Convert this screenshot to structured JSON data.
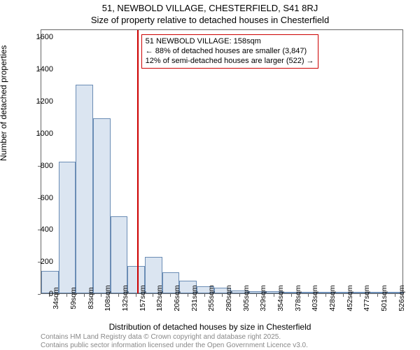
{
  "title_main": "51, NEWBOLD VILLAGE, CHESTERFIELD, S41 8RJ",
  "title_sub": "Size of property relative to detached houses in Chesterfield",
  "ylabel": "Number of detached properties",
  "xlabel": "Distribution of detached houses by size in Chesterfield",
  "attribution_line1": "Contains HM Land Registry data © Crown copyright and database right 2025.",
  "attribution_line2": "Contains public sector information licensed under the Open Government Licence v3.0.",
  "chart": {
    "type": "histogram",
    "background_color": "#ffffff",
    "axis_color": "#666666",
    "ylim": [
      0,
      1650
    ],
    "yticks": [
      0,
      200,
      400,
      600,
      800,
      1000,
      1200,
      1400,
      1600
    ],
    "xticks": [
      "34sqm",
      "59sqm",
      "83sqm",
      "108sqm",
      "132sqm",
      "157sqm",
      "182sqm",
      "206sqm",
      "231sqm",
      "255sqm",
      "280sqm",
      "305sqm",
      "329sqm",
      "354sqm",
      "378sqm",
      "403sqm",
      "428sqm",
      "452sqm",
      "477sqm",
      "501sqm",
      "526sqm"
    ],
    "bars": [
      140,
      820,
      1300,
      1090,
      480,
      170,
      225,
      130,
      80,
      45,
      35,
      18,
      15,
      12,
      8,
      6,
      4,
      4,
      4,
      3,
      3
    ],
    "bar_fill": "#dbe5f1",
    "bar_stroke": "#6b8db5",
    "marker_value_sqm": 158,
    "marker_color": "#cc0000",
    "annotation": {
      "line1": "51 NEWBOLD VILLAGE: 158sqm",
      "line2": "← 88% of detached houses are smaller (3,847)",
      "line3": "12% of semi-detached houses are larger (522) →",
      "border_color": "#cc0000"
    }
  }
}
